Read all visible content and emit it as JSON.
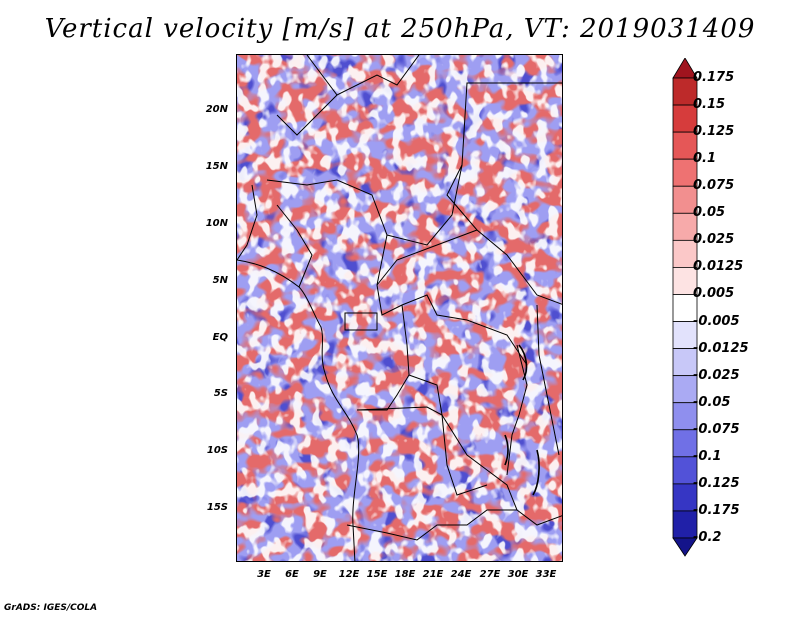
{
  "title": "Vertical velocity [m/s] at 250hPa, VT: 2019031409",
  "footer": "GrADS: IGES/COLA",
  "map": {
    "variable": "vertical velocity",
    "level": "250hPa",
    "valid_time": "2019031409",
    "lat_labels": [
      "20N",
      "15N",
      "10N",
      "5N",
      "EQ",
      "5S",
      "10S",
      "15S"
    ],
    "lon_labels": [
      "3E",
      "6E",
      "9E",
      "12E",
      "15E",
      "18E",
      "21E",
      "24E",
      "27E",
      "30E",
      "33E"
    ]
  },
  "colorbar": {
    "labels": [
      "0.175",
      "0.15",
      "0.125",
      "0.1",
      "0.075",
      "0.05",
      "0.025",
      "0.0125",
      "0.005",
      "-0.005",
      "-0.0125",
      "-0.025",
      "-0.05",
      "-0.075",
      "-0.1",
      "-0.125",
      "-0.175",
      "-0.2"
    ],
    "colors": [
      "#a0141e",
      "#bd2a2a",
      "#d63c3c",
      "#e55757",
      "#ee7272",
      "#f28f8f",
      "#f7aaaa",
      "#fbc8c8",
      "#fde3e3",
      "#ffffff",
      "#e2e2fc",
      "#c8c8f8",
      "#aaaaf3",
      "#8f8fee",
      "#7070e6",
      "#5252d8",
      "#3636c4",
      "#2020a8",
      "#14148a"
    ]
  }
}
